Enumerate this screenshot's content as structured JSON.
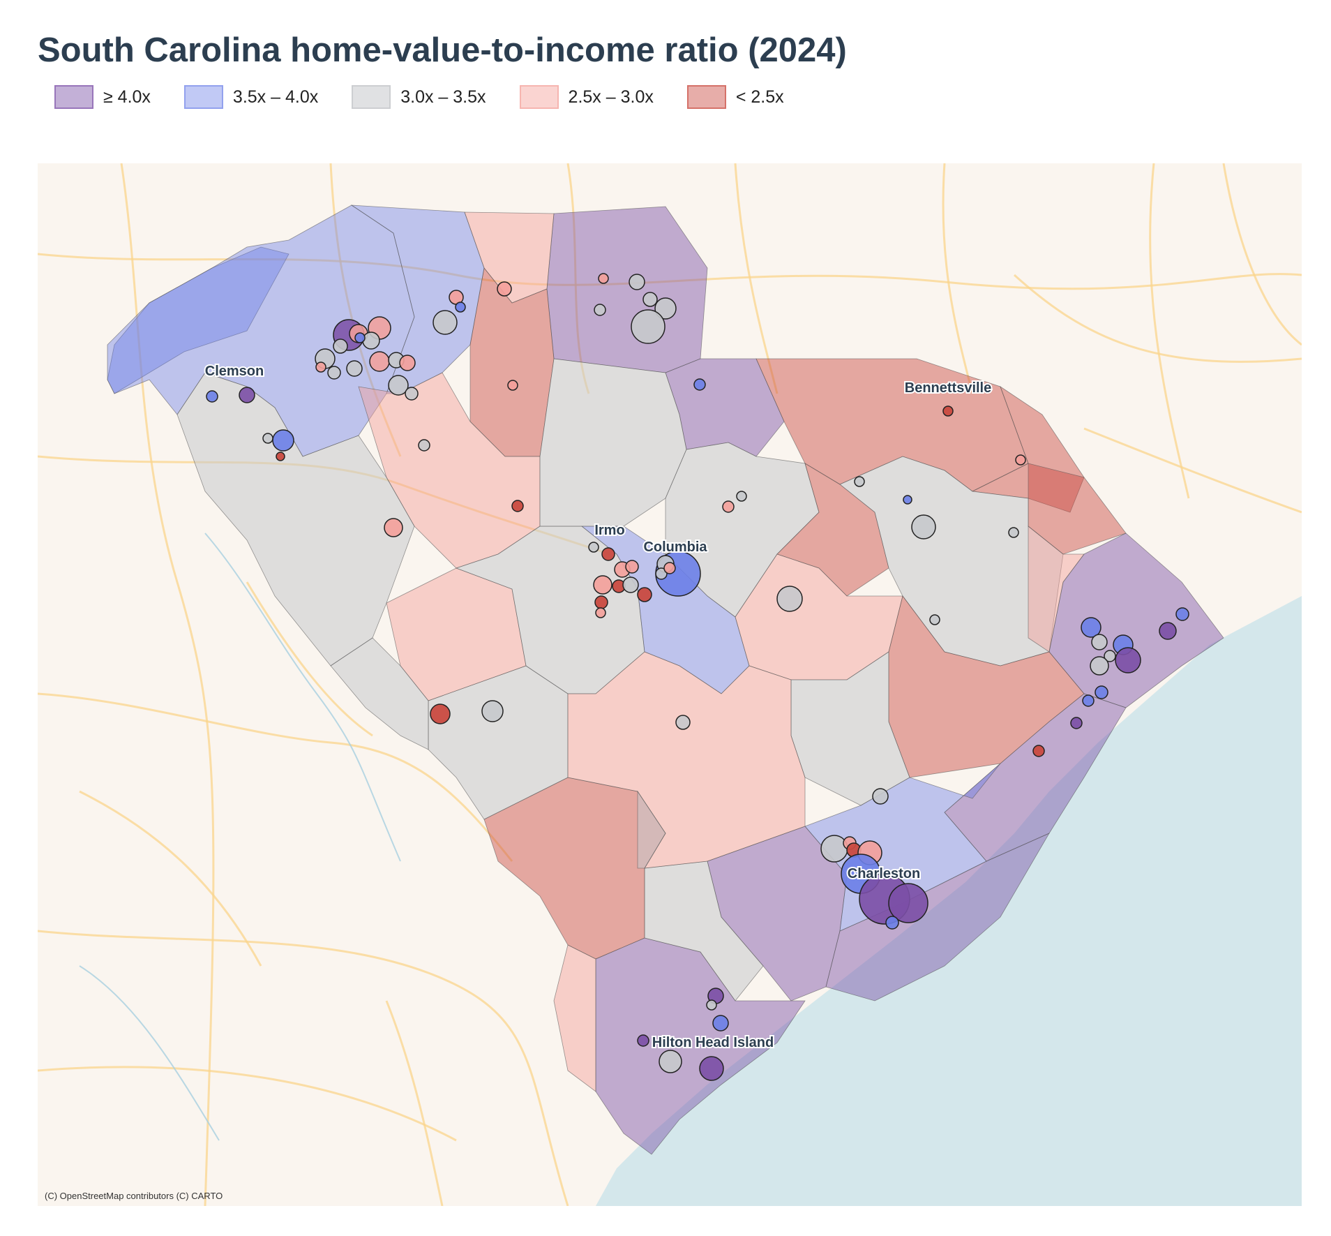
{
  "title": "South Carolina home-value-to-income ratio (2024)",
  "legend": [
    {
      "label": "≥ 4.0x",
      "color": "#7b4fa6"
    },
    {
      "label": "3.5x – 4.0x",
      "color": "#6b7fe8"
    },
    {
      "label": "3.0x – 3.5x",
      "color": "#c7c9cc"
    },
    {
      "label": "2.5x – 3.0x",
      "color": "#f4a09a"
    },
    {
      "label": "< 2.5x",
      "color": "#c94a40"
    }
  ],
  "places": [
    "Clemson",
    "Bennettsville",
    "Irmo",
    "Columbia",
    "Charleston",
    "Hilton Head Island"
  ],
  "attribution": "(C) OpenStreetMap contributors (C) CARTO",
  "colors": {
    "water": "#d4e7eb",
    "land": "#faf5ef",
    "roads": "#f9d48c",
    "county_border": "#666666"
  }
}
